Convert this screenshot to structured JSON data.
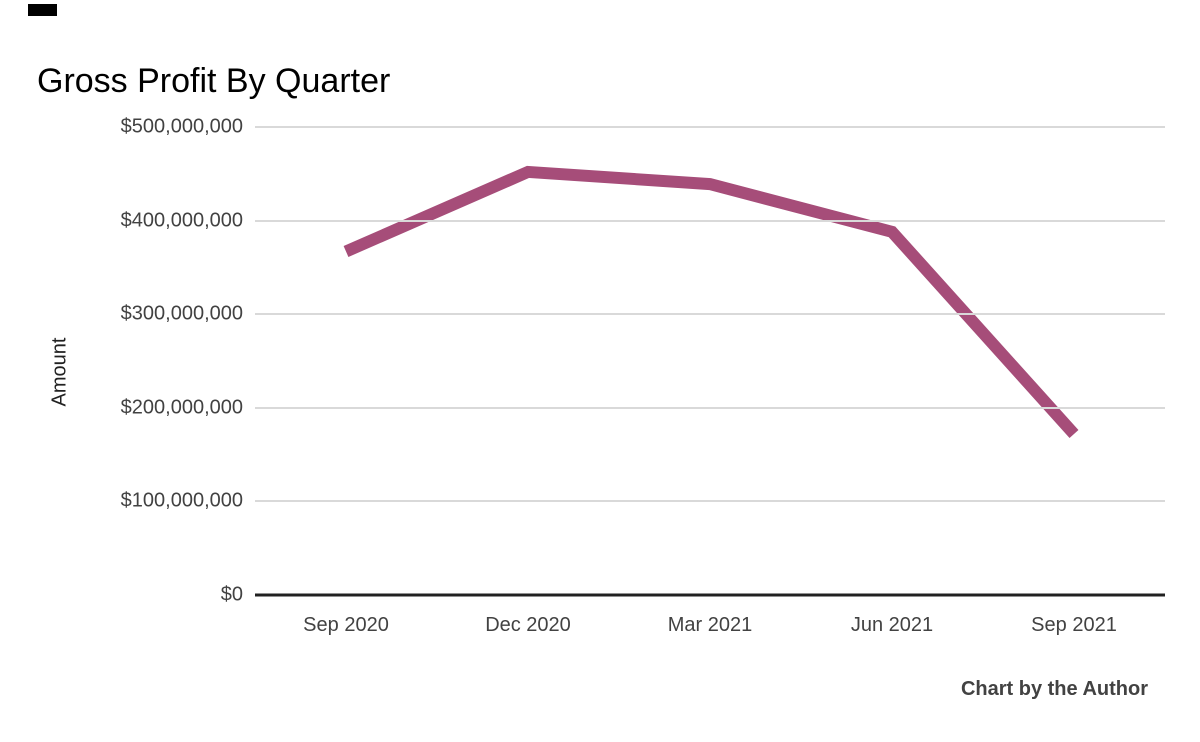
{
  "title": "Gross Profit By Quarter",
  "attribution": "Chart by the Author",
  "chart_data": {
    "type": "line",
    "title": "Gross Profit By Quarter",
    "xlabel": "",
    "ylabel": "Amount",
    "categories": [
      "Sep 2020",
      "Dec 2020",
      "Mar 2021",
      "Jun 2021",
      "Sep 2021"
    ],
    "values": [
      367000000,
      452000000,
      439000000,
      388000000,
      172000000
    ],
    "ylim": [
      0,
      500000000
    ],
    "y_ticks": [
      {
        "value": 500000000,
        "label": "$500,000,000"
      },
      {
        "value": 400000000,
        "label": "$400,000,000"
      },
      {
        "value": 300000000,
        "label": "$300,000,000"
      },
      {
        "value": 200000000,
        "label": "$200,000,000"
      },
      {
        "value": 100000000,
        "label": "$100,000,000"
      },
      {
        "value": 0,
        "label": "$0"
      }
    ],
    "grid": true,
    "legend": "none",
    "line_color": "#a64d79",
    "line_width": 12,
    "gridline_color": "#d9d9d9",
    "axis_color": "#212121",
    "tick_color": "#424242",
    "title_color": "#000000",
    "attribution_color": "#424242"
  }
}
